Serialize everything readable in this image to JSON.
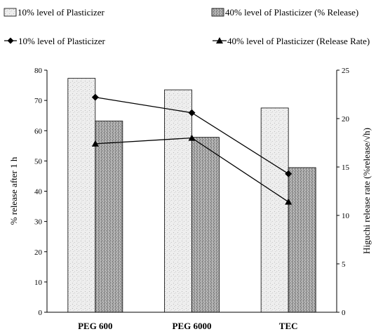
{
  "chart_data": {
    "type": "bar",
    "categories": [
      "PEG 600",
      "PEG 6000",
      "TEC"
    ],
    "series": [
      {
        "name": "10% level of Plasticizer",
        "kind": "bar",
        "axis": "left",
        "pattern": "light-stipple",
        "values": [
          77.3,
          73.5,
          67.5
        ]
      },
      {
        "name": "40% level of Plasticizer (% Release)",
        "kind": "bar",
        "axis": "left",
        "pattern": "dark-stipple",
        "values": [
          63.2,
          57.8,
          47.8
        ]
      },
      {
        "name": "10% level of Plasticizer",
        "kind": "line",
        "marker": "diamond",
        "axis": "right",
        "values": [
          22.2,
          20.6,
          14.3
        ]
      },
      {
        "name": "40% level of Plasticizer (Release Rate)",
        "kind": "line",
        "marker": "triangle",
        "axis": "right",
        "values": [
          17.4,
          18.0,
          11.4
        ]
      }
    ],
    "ylabel": "% release after 1 h",
    "y2label": "Higuchi release rate (%release/√h)",
    "ylim": [
      0,
      80
    ],
    "y2lim": [
      0,
      25
    ],
    "yticks": [
      "0",
      "10",
      "20",
      "30",
      "40",
      "50",
      "60",
      "70",
      "80"
    ],
    "y2ticks": [
      "0",
      "5",
      "10",
      "15",
      "20",
      "25"
    ],
    "legend_position": "top",
    "grid": false
  }
}
